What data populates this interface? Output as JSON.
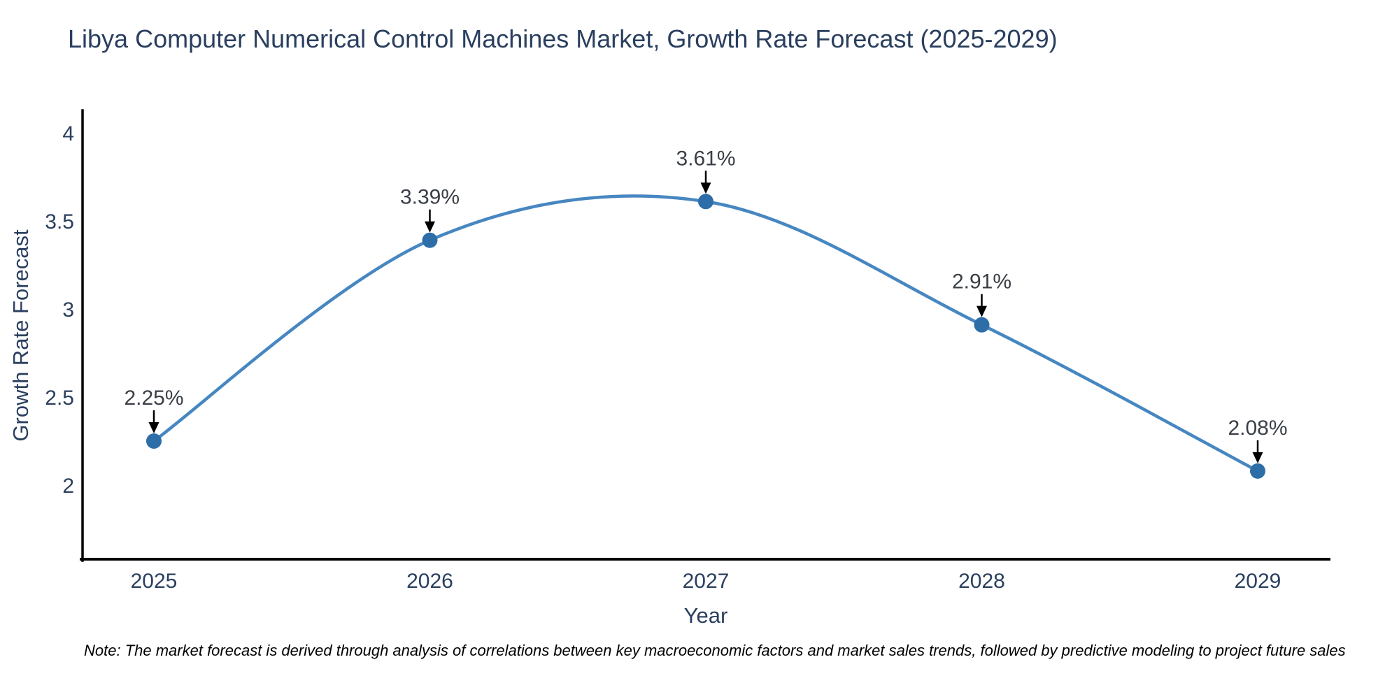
{
  "title": "Libya Computer Numerical Control Machines Market, Growth Rate Forecast (2025-2029)",
  "note": "Note: The market forecast is derived through analysis of correlations between key macroeconomic factors and market sales trends, followed by predictive modeling to project future sales",
  "chart_data": {
    "type": "line",
    "line_shape": "spline",
    "title": "Libya Computer Numerical Control Machines Market, Growth Rate Forecast (2025-2029)",
    "xlabel": "Year",
    "ylabel": "Growth Rate Forecast",
    "categories": [
      "2025",
      "2026",
      "2027",
      "2028",
      "2029"
    ],
    "x": [
      2025,
      2026,
      2027,
      2028,
      2029
    ],
    "values": [
      2.25,
      3.39,
      3.61,
      2.91,
      2.08
    ],
    "labels": [
      "2.25%",
      "3.39%",
      "3.61%",
      "2.91%",
      "2.08%"
    ],
    "yticks": [
      4,
      3.5,
      3,
      2.5,
      2
    ],
    "ytick_labels": [
      "4",
      "3.5",
      "3",
      "2.5",
      "2"
    ],
    "ylim": [
      1.55,
      4.12
    ],
    "grid": false,
    "legend": false,
    "markers": true,
    "annotations_arrows": true,
    "colors": {
      "line": "#4787c1",
      "marker": "#2d6ea8",
      "axis_line": "#000000",
      "chart_text": "#2a3f5f",
      "annotation_text": "#3a3f46",
      "arrow": "#000000",
      "note_text": "#000000",
      "background": "#ffffff"
    }
  }
}
